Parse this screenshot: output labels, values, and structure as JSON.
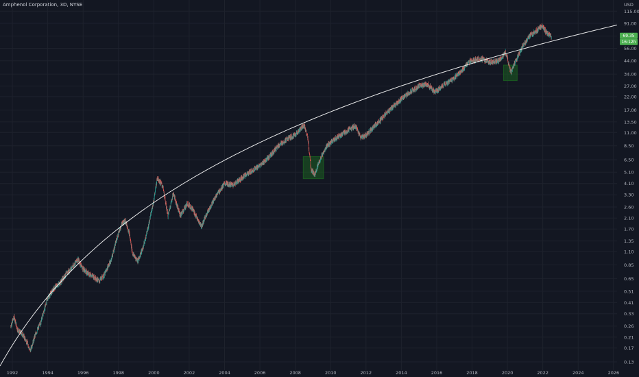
{
  "header": {
    "title": "Amphenol Corporation, 3D, NYSE"
  },
  "chart_data": {
    "type": "candlestick",
    "yscale": "log",
    "unit_label": "USD",
    "ylim": [
      0.12,
      125
    ],
    "xlim": [
      1991.3,
      2026.2
    ],
    "grid": true,
    "yticks": [
      115.0,
      91.0,
      71.0,
      56.0,
      44.0,
      34.0,
      27.0,
      22.0,
      17.0,
      13.5,
      11.0,
      8.5,
      6.5,
      5.1,
      4.1,
      3.3,
      2.6,
      2.1,
      1.7,
      1.35,
      1.1,
      0.85,
      0.65,
      0.51,
      0.41,
      0.33,
      0.26,
      0.21,
      0.17,
      0.13
    ],
    "ytick_labels": [
      "115.00",
      "91.00",
      "71.00",
      "56.00",
      "44.00",
      "34.00",
      "27.00",
      "22.00",
      "17.00",
      "13.50",
      "11.00",
      "8.50",
      "6.50",
      "5.10",
      "4.10",
      "3.30",
      "2.60",
      "2.10",
      "1.70",
      "1.35",
      "1.10",
      "0.85",
      "0.65",
      "0.51",
      "0.41",
      "0.33",
      "0.26",
      "0.21",
      "0.17",
      "0.13"
    ],
    "xticks": [
      1992,
      1994,
      1996,
      1998,
      2000,
      2002,
      2004,
      2006,
      2008,
      2010,
      2012,
      2014,
      2016,
      2018,
      2020,
      2022,
      2024,
      2026
    ],
    "xtick_labels": [
      "1992",
      "1994",
      "1996",
      "1998",
      "2000",
      "2002",
      "2004",
      "2006",
      "2008",
      "2010",
      "2012",
      "2014",
      "2016",
      "2018",
      "2020",
      "2022",
      "2024",
      "2026"
    ],
    "price_path": [
      [
        1991.9,
        0.26
      ],
      [
        1992.1,
        0.31
      ],
      [
        1992.3,
        0.24
      ],
      [
        1992.6,
        0.22
      ],
      [
        1992.9,
        0.18
      ],
      [
        1993.0,
        0.16
      ],
      [
        1993.3,
        0.22
      ],
      [
        1993.6,
        0.28
      ],
      [
        1994.0,
        0.45
      ],
      [
        1994.4,
        0.55
      ],
      [
        1994.7,
        0.6
      ],
      [
        1995.0,
        0.7
      ],
      [
        1995.4,
        0.82
      ],
      [
        1995.7,
        0.95
      ],
      [
        1996.0,
        0.78
      ],
      [
        1996.3,
        0.72
      ],
      [
        1996.6,
        0.68
      ],
      [
        1996.9,
        0.62
      ],
      [
        1997.2,
        0.7
      ],
      [
        1997.6,
        0.95
      ],
      [
        1997.9,
        1.4
      ],
      [
        1998.2,
        1.9
      ],
      [
        1998.4,
        2.0
      ],
      [
        1998.6,
        1.6
      ],
      [
        1998.8,
        1.05
      ],
      [
        1999.1,
        0.92
      ],
      [
        1999.4,
        1.2
      ],
      [
        1999.7,
        1.8
      ],
      [
        2000.0,
        3.0
      ],
      [
        2000.2,
        4.6
      ],
      [
        2000.5,
        3.9
      ],
      [
        2000.8,
        2.2
      ],
      [
        2001.1,
        3.4
      ],
      [
        2001.5,
        2.2
      ],
      [
        2001.9,
        2.8
      ],
      [
        2002.2,
        2.5
      ],
      [
        2002.5,
        2.0
      ],
      [
        2002.7,
        1.8
      ],
      [
        2003.0,
        2.3
      ],
      [
        2003.5,
        3.2
      ],
      [
        2004.0,
        4.1
      ],
      [
        2004.5,
        4.0
      ],
      [
        2005.0,
        4.6
      ],
      [
        2005.5,
        5.2
      ],
      [
        2006.0,
        5.8
      ],
      [
        2006.5,
        6.8
      ],
      [
        2007.0,
        8.4
      ],
      [
        2007.5,
        9.6
      ],
      [
        2008.0,
        10.5
      ],
      [
        2008.5,
        12.8
      ],
      [
        2008.7,
        10.0
      ],
      [
        2008.9,
        5.3
      ],
      [
        2009.1,
        4.9
      ],
      [
        2009.4,
        6.5
      ],
      [
        2009.8,
        8.5
      ],
      [
        2010.2,
        9.6
      ],
      [
        2010.6,
        10.5
      ],
      [
        2011.0,
        11.5
      ],
      [
        2011.4,
        12.5
      ],
      [
        2011.7,
        10.0
      ],
      [
        2012.0,
        10.5
      ],
      [
        2012.5,
        12.5
      ],
      [
        2013.0,
        15.0
      ],
      [
        2013.5,
        18.0
      ],
      [
        2014.0,
        21.0
      ],
      [
        2014.5,
        24.0
      ],
      [
        2015.0,
        27.0
      ],
      [
        2015.5,
        28.0
      ],
      [
        2015.9,
        24.0
      ],
      [
        2016.3,
        27.0
      ],
      [
        2016.8,
        30.0
      ],
      [
        2017.3,
        35.0
      ],
      [
        2017.9,
        44.0
      ],
      [
        2018.5,
        46.0
      ],
      [
        2019.0,
        43.0
      ],
      [
        2019.5,
        44.0
      ],
      [
        2019.9,
        52.0
      ],
      [
        2020.2,
        35.0
      ],
      [
        2020.5,
        45.0
      ],
      [
        2020.9,
        60.0
      ],
      [
        2021.3,
        72.0
      ],
      [
        2021.7,
        80.0
      ],
      [
        2021.95,
        88.0
      ],
      [
        2022.2,
        76.0
      ],
      [
        2022.5,
        70.0
      ]
    ],
    "trend_curve": [
      [
        1991.3,
        0.12
      ],
      [
        2026.2,
        88.0
      ]
    ],
    "highlight_boxes": [
      {
        "x": [
          2008.45,
          2009.6
        ],
        "y": [
          4.5,
          6.9
        ]
      },
      {
        "x": [
          2019.78,
          2020.55
        ],
        "y": [
          30.0,
          40.5
        ]
      }
    ],
    "price_tags": [
      {
        "text": "69.35",
        "color": "#4caf50"
      },
      {
        "text": "16:12h",
        "color": "#4caf50"
      }
    ],
    "colors": {
      "background": "#131722",
      "grid": "#1e222d",
      "up": "#26a69a",
      "down": "#ef5350",
      "trend": "#ffffff",
      "highlight": "#1b5e20",
      "tag": "#4caf50"
    }
  }
}
